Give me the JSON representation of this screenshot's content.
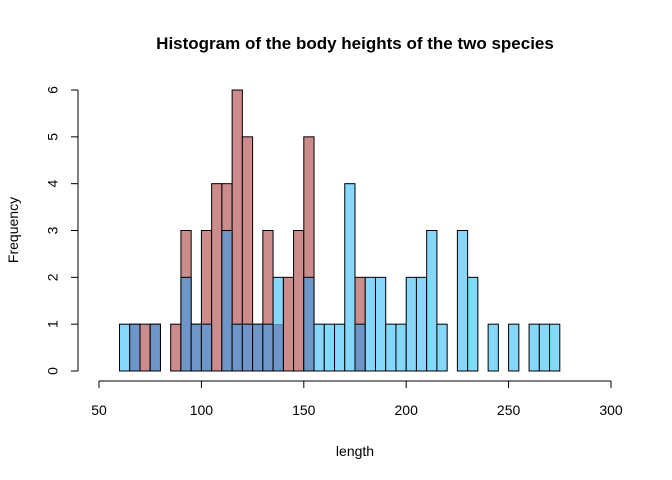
{
  "chart_data": {
    "type": "bar",
    "title": "Histogram of the body heights of the two species",
    "xlabel": "length",
    "ylabel": "Frequency",
    "xlim": [
      50,
      300
    ],
    "ylim": [
      0,
      6
    ],
    "xticks": [
      50,
      100,
      150,
      200,
      250,
      300
    ],
    "yticks": [
      0,
      1,
      2,
      3,
      4,
      5,
      6
    ],
    "bin_width": 5,
    "grid": false,
    "series": [
      {
        "color": "#CD8C8C",
        "bins": [
          [
            65,
            70,
            1
          ],
          [
            70,
            75,
            1
          ],
          [
            75,
            80,
            1
          ],
          [
            85,
            90,
            1
          ],
          [
            90,
            95,
            3
          ],
          [
            95,
            100,
            1
          ],
          [
            100,
            105,
            3
          ],
          [
            105,
            110,
            4
          ],
          [
            110,
            115,
            4
          ],
          [
            115,
            120,
            6
          ],
          [
            120,
            125,
            5
          ],
          [
            125,
            130,
            1
          ],
          [
            130,
            135,
            3
          ],
          [
            135,
            140,
            1
          ],
          [
            140,
            145,
            2
          ],
          [
            145,
            150,
            3
          ],
          [
            150,
            155,
            5
          ],
          [
            175,
            180,
            2
          ]
        ]
      },
      {
        "color": "#87D7FA",
        "bins": [
          [
            60,
            65,
            1
          ],
          [
            65,
            70,
            1
          ],
          [
            75,
            80,
            1
          ],
          [
            90,
            95,
            2
          ],
          [
            95,
            100,
            1
          ],
          [
            100,
            105,
            1
          ],
          [
            110,
            115,
            3
          ],
          [
            115,
            120,
            1
          ],
          [
            120,
            125,
            1
          ],
          [
            125,
            130,
            1
          ],
          [
            130,
            135,
            1
          ],
          [
            135,
            140,
            2
          ],
          [
            150,
            155,
            2
          ],
          [
            155,
            160,
            1
          ],
          [
            160,
            165,
            1
          ],
          [
            165,
            170,
            1
          ],
          [
            170,
            175,
            4
          ],
          [
            175,
            180,
            1
          ],
          [
            180,
            185,
            2
          ],
          [
            185,
            190,
            2
          ],
          [
            190,
            195,
            1
          ],
          [
            195,
            200,
            1
          ],
          [
            200,
            205,
            2
          ],
          [
            205,
            210,
            2
          ],
          [
            210,
            215,
            3
          ],
          [
            215,
            220,
            1
          ],
          [
            225,
            230,
            3
          ],
          [
            230,
            235,
            2
          ],
          [
            240,
            245,
            1
          ],
          [
            250,
            255,
            1
          ],
          [
            260,
            265,
            1
          ],
          [
            265,
            270,
            1
          ],
          [
            270,
            275,
            1
          ]
        ]
      }
    ],
    "overlap_color": "#6E96C8"
  }
}
